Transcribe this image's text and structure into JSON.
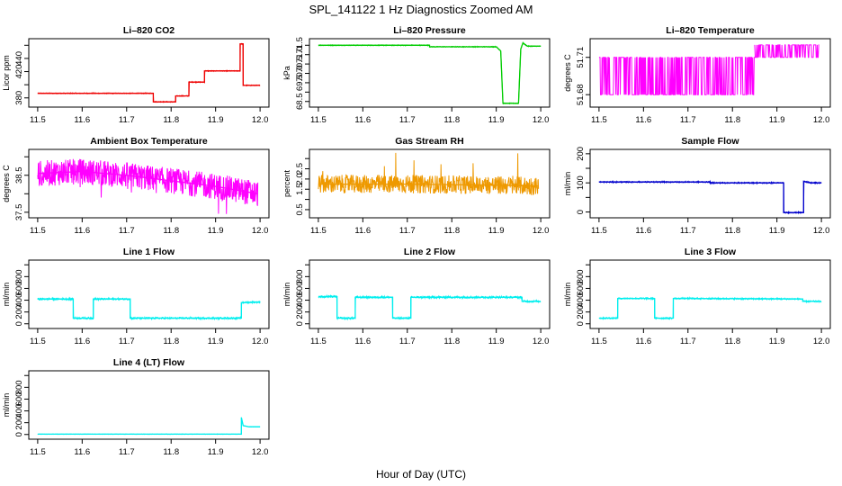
{
  "figure": {
    "title": "SPL_141122  1 Hz Diagnostics Zoomed AM",
    "xlabel": "Hour of Day (UTC)"
  },
  "chart_data": [
    {
      "type": "line",
      "title": "Li–820 CO2",
      "ylabel": "Licor ppm",
      "color": "#ee0000",
      "xlim": [
        11.5,
        12.0
      ],
      "ylim": [
        366,
        470
      ],
      "yticks": [
        380,
        400,
        420,
        440,
        460
      ],
      "ytick_labels": [
        "380",
        "",
        "420",
        "440",
        ""
      ],
      "xticks": [
        11.5,
        11.6,
        11.7,
        11.8,
        11.9,
        12.0
      ],
      "xtick_labels": [
        "11.5",
        "11.6",
        "11.7",
        "11.8",
        "11.9",
        "12.0"
      ],
      "noise": 0.6,
      "x": [
        11.5,
        11.76,
        11.76,
        11.81,
        11.81,
        11.84,
        11.84,
        11.875,
        11.875,
        11.955,
        11.955,
        11.962,
        11.962,
        12.0
      ],
      "y": [
        387,
        387,
        374,
        374,
        383,
        383,
        404,
        404,
        421,
        421,
        462,
        462,
        399,
        399
      ]
    },
    {
      "type": "line",
      "title": "Li–820 Pressure",
      "ylabel": "kPa",
      "color": "#00cc00",
      "xlim": [
        11.5,
        12.0
      ],
      "ylim": [
        68.2,
        71.85
      ],
      "yticks": [
        68.5,
        69.0,
        69.5,
        70.0,
        70.5,
        71.0,
        71.5
      ],
      "ytick_labels": [
        "68.5",
        "",
        "69.5",
        "70.0",
        "70.5",
        "71.0",
        "71.5"
      ],
      "xticks": [
        11.5,
        11.6,
        11.7,
        11.8,
        11.9,
        12.0
      ],
      "xtick_labels": [
        "11.5",
        "11.6",
        "11.7",
        "11.8",
        "11.9",
        "12.0"
      ],
      "noise": 0.02,
      "x": [
        11.5,
        11.75,
        11.75,
        11.9,
        11.91,
        11.915,
        11.95,
        11.955,
        11.96,
        11.97,
        12.0
      ],
      "y": [
        71.5,
        71.5,
        71.42,
        71.42,
        71.2,
        68.4,
        68.4,
        71.3,
        71.62,
        71.45,
        71.45
      ]
    },
    {
      "type": "line",
      "title": "Li–820 Temperature",
      "ylabel": "degrees C",
      "color": "#ff00ff",
      "xlim": [
        11.5,
        12.0
      ],
      "ylim": [
        51.67,
        51.725
      ],
      "yticks": [
        51.68,
        51.71
      ],
      "ytick_labels": [
        "51.68",
        "51.71"
      ],
      "xticks": [
        11.5,
        11.6,
        11.7,
        11.8,
        11.9,
        12.0
      ],
      "xtick_labels": [
        "11.5",
        "11.6",
        "11.7",
        "11.8",
        "11.9",
        "12.0"
      ],
      "segments": [
        {
          "x0": 11.5,
          "x1": 11.85,
          "lo": 51.68,
          "hi": 51.71
        },
        {
          "x0": 11.85,
          "x1": 11.92,
          "lo": 51.71,
          "hi": 51.72
        },
        {
          "x0": 11.92,
          "x1": 11.995,
          "lo": 51.71,
          "hi": 51.72
        }
      ]
    },
    {
      "type": "line",
      "title": "Ambient Box Temperature",
      "ylabel": "degrees C",
      "color": "#ff00ff",
      "xlim": [
        11.5,
        12.0
      ],
      "ylim": [
        37.35,
        39.2
      ],
      "yticks": [
        37.5,
        38.0,
        38.5,
        39.0
      ],
      "ytick_labels": [
        "37.5",
        "",
        "38.5",
        ""
      ],
      "xticks": [
        11.5,
        11.6,
        11.7,
        11.8,
        11.9,
        12.0
      ],
      "xtick_labels": [
        "11.5",
        "11.6",
        "11.7",
        "11.8",
        "11.9",
        "12.0"
      ],
      "noise": 0.35,
      "x": [
        11.5,
        11.6,
        11.7,
        11.8,
        11.9,
        11.995
      ],
      "y": [
        38.55,
        38.6,
        38.5,
        38.35,
        38.2,
        38.0
      ]
    },
    {
      "type": "line",
      "title": "Gas Stream RH",
      "ylabel": "percent",
      "color": "#ee9900",
      "xlim": [
        11.5,
        12.0
      ],
      "ylim": [
        0.1,
        3.45
      ],
      "yticks": [
        0.5,
        1.0,
        1.5,
        2.0,
        2.5,
        3.0
      ],
      "ytick_labels": [
        "0.5",
        "",
        "1.5",
        "2.0",
        "2.5",
        ""
      ],
      "xticks": [
        11.5,
        11.6,
        11.7,
        11.8,
        11.9,
        12.0
      ],
      "xtick_labels": [
        "11.5",
        "11.6",
        "11.7",
        "11.8",
        "11.9",
        "12.0"
      ],
      "noise": 0.45,
      "x": [
        11.5,
        11.7,
        11.9,
        11.995
      ],
      "y": [
        1.75,
        1.75,
        1.7,
        1.65
      ]
    },
    {
      "type": "line",
      "title": "Sample Flow",
      "ylabel": "ml/min",
      "color": "#0000cc",
      "xlim": [
        11.5,
        12.0
      ],
      "ylim": [
        -20,
        215
      ],
      "yticks": [
        0,
        50,
        100,
        150,
        200
      ],
      "ytick_labels": [
        "0",
        "",
        "100",
        "",
        "200"
      ],
      "xticks": [
        11.5,
        11.6,
        11.7,
        11.8,
        11.9,
        12.0
      ],
      "xtick_labels": [
        "11.5",
        "11.6",
        "11.7",
        "11.8",
        "11.9",
        "12.0"
      ],
      "noise": 2,
      "x": [
        11.5,
        11.75,
        11.75,
        11.915,
        11.915,
        11.96,
        11.96,
        11.975,
        12.0
      ],
      "y": [
        103,
        103,
        100,
        100,
        -2,
        -2,
        106,
        100,
        100
      ]
    },
    {
      "type": "line",
      "title": "Line 1 Flow",
      "ylabel": "ml/min",
      "color": "#00eeee",
      "xlim": [
        11.5,
        12.0
      ],
      "ylim": [
        -80,
        1080
      ],
      "yticks": [
        0,
        200,
        400,
        600,
        800,
        1000
      ],
      "ytick_labels": [
        "0",
        "200",
        "400",
        "600",
        "800",
        ""
      ],
      "xticks": [
        11.5,
        11.6,
        11.7,
        11.8,
        11.9,
        12.0
      ],
      "xtick_labels": [
        "11.5",
        "11.6",
        "11.7",
        "11.8",
        "11.9",
        "12.0"
      ],
      "noise": 14,
      "x": [
        11.5,
        11.58,
        11.58,
        11.625,
        11.625,
        11.708,
        11.708,
        11.958,
        11.958,
        12.0
      ],
      "y": [
        420,
        420,
        95,
        95,
        420,
        420,
        95,
        95,
        360,
        370
      ]
    },
    {
      "type": "line",
      "title": "Line 2 Flow",
      "ylabel": "ml/min",
      "color": "#00eeee",
      "xlim": [
        11.5,
        12.0
      ],
      "ylim": [
        -80,
        1080
      ],
      "yticks": [
        0,
        200,
        400,
        600,
        800,
        1000
      ],
      "ytick_labels": [
        "0",
        "200",
        "400",
        "600",
        "800",
        ""
      ],
      "xticks": [
        11.5,
        11.6,
        11.7,
        11.8,
        11.9,
        12.0
      ],
      "xtick_labels": [
        "11.5",
        "11.6",
        "11.7",
        "11.8",
        "11.9",
        "12.0"
      ],
      "noise": 16,
      "x": [
        11.5,
        11.542,
        11.542,
        11.583,
        11.583,
        11.667,
        11.667,
        11.708,
        11.708,
        11.958,
        11.958,
        12.0
      ],
      "y": [
        460,
        460,
        95,
        95,
        450,
        450,
        95,
        95,
        450,
        450,
        380,
        380
      ]
    },
    {
      "type": "line",
      "title": "Line 3 Flow",
      "ylabel": "ml/min",
      "color": "#00eeee",
      "xlim": [
        11.5,
        12.0
      ],
      "ylim": [
        -80,
        1080
      ],
      "yticks": [
        0,
        200,
        400,
        600,
        800,
        1000
      ],
      "ytick_labels": [
        "0",
        "200",
        "400",
        "600",
        "800",
        ""
      ],
      "xticks": [
        11.5,
        11.6,
        11.7,
        11.8,
        11.9,
        12.0
      ],
      "xtick_labels": [
        "11.5",
        "11.6",
        "11.7",
        "11.8",
        "11.9",
        "12.0"
      ],
      "noise": 12,
      "x": [
        11.5,
        11.542,
        11.542,
        11.625,
        11.625,
        11.667,
        11.667,
        11.958,
        11.958,
        12.0
      ],
      "y": [
        95,
        95,
        430,
        430,
        95,
        95,
        430,
        420,
        380,
        380
      ]
    },
    {
      "type": "line",
      "title": "Line 4 (LT) Flow",
      "ylabel": "ml/min",
      "color": "#00eeee",
      "xlim": [
        11.5,
        12.0
      ],
      "ylim": [
        -80,
        1080
      ],
      "yticks": [
        0,
        200,
        400,
        600,
        800,
        1000
      ],
      "ytick_labels": [
        "0",
        "200",
        "400",
        "600",
        "800",
        ""
      ],
      "xticks": [
        11.5,
        11.6,
        11.7,
        11.8,
        11.9,
        12.0
      ],
      "xtick_labels": [
        "11.5",
        "11.6",
        "11.7",
        "11.8",
        "11.9",
        "12.0"
      ],
      "noise": 3,
      "x": [
        11.5,
        11.958,
        11.958,
        11.962,
        11.975,
        12.0
      ],
      "y": [
        5,
        5,
        290,
        150,
        130,
        130
      ]
    }
  ]
}
